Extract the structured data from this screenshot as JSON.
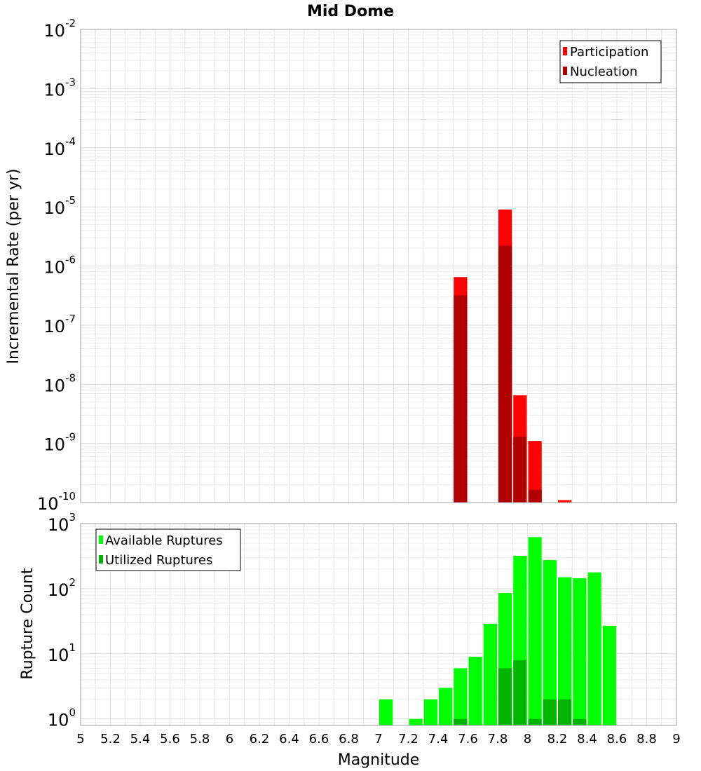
{
  "chart_data": [
    {
      "type": "bar",
      "title": "Mid Dome",
      "xlabel": "",
      "ylabel": "Incremental Rate (per yr)",
      "y_scale": "log",
      "ylim_exponents": [
        -10,
        -2
      ],
      "xlim": [
        5,
        9
      ],
      "ytick_exponents": [
        -10,
        -9,
        -8,
        -7,
        -6,
        -5,
        -4,
        -3,
        -2
      ],
      "y_tick_base": "10",
      "bar_width": 0.1,
      "grid": true,
      "legend_position": "top-right",
      "series": [
        {
          "name": "Participation",
          "color": "#ff0000",
          "points": [
            {
              "x": 7.55,
              "y": 6.5e-07
            },
            {
              "x": 7.85,
              "y": 9e-06
            },
            {
              "x": 7.95,
              "y": 6.5e-09
            },
            {
              "x": 8.05,
              "y": 1.1e-09
            },
            {
              "x": 8.25,
              "y": 1.1e-10
            }
          ]
        },
        {
          "name": "Nucleation",
          "color": "#b00000",
          "points": [
            {
              "x": 7.55,
              "y": 3.2e-07
            },
            {
              "x": 7.85,
              "y": 2.2e-06
            },
            {
              "x": 7.95,
              "y": 1.3e-09
            },
            {
              "x": 8.05,
              "y": 1.65e-10
            }
          ]
        }
      ]
    },
    {
      "type": "bar",
      "xlabel": "Magnitude",
      "ylabel": "Rupture Count",
      "y_scale": "log",
      "ylim_exponents": [
        -0.1,
        3
      ],
      "xlim": [
        5,
        9
      ],
      "ytick_exponents": [
        0,
        1,
        2,
        3
      ],
      "y_tick_base": "10",
      "xticks": [
        "5",
        "5.2",
        "5.4",
        "5.6",
        "5.8",
        "6",
        "6.2",
        "6.4",
        "6.6",
        "6.8",
        "7",
        "7.2",
        "7.4",
        "7.6",
        "7.8",
        "8",
        "8.2",
        "8.4",
        "8.6",
        "8.8",
        "9"
      ],
      "bar_width": 0.1,
      "grid": true,
      "legend_position": "top-left",
      "series": [
        {
          "name": "Available Ruptures",
          "color": "#00ff00",
          "points": [
            {
              "x": 7.05,
              "y": 2
            },
            {
              "x": 7.25,
              "y": 1
            },
            {
              "x": 7.35,
              "y": 2
            },
            {
              "x": 7.45,
              "y": 3
            },
            {
              "x": 7.55,
              "y": 6
            },
            {
              "x": 7.65,
              "y": 9
            },
            {
              "x": 7.75,
              "y": 29
            },
            {
              "x": 7.85,
              "y": 86
            },
            {
              "x": 7.95,
              "y": 320
            },
            {
              "x": 8.05,
              "y": 620
            },
            {
              "x": 8.15,
              "y": 275
            },
            {
              "x": 8.25,
              "y": 150
            },
            {
              "x": 8.35,
              "y": 145
            },
            {
              "x": 8.45,
              "y": 178
            },
            {
              "x": 8.55,
              "y": 27
            }
          ]
        },
        {
          "name": "Utilized Ruptures",
          "color": "#00b400",
          "points": [
            {
              "x": 7.55,
              "y": 1
            },
            {
              "x": 7.85,
              "y": 6
            },
            {
              "x": 7.95,
              "y": 8
            },
            {
              "x": 8.05,
              "y": 1
            },
            {
              "x": 8.15,
              "y": 2
            },
            {
              "x": 8.25,
              "y": 2
            },
            {
              "x": 8.35,
              "y": 1
            }
          ]
        }
      ]
    }
  ]
}
